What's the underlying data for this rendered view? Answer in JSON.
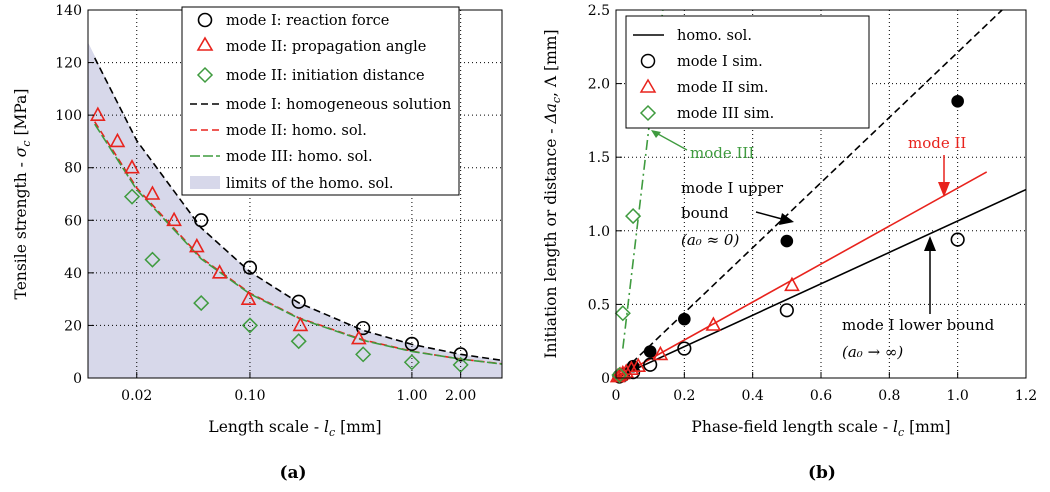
{
  "chart_data": [
    {
      "type": "scatter",
      "panel_label": "(a)",
      "xlabel": "Length scale - l_c [mm]",
      "ylabel": "Tensile strength - σ_c [MPa]",
      "xscale": "log",
      "xlim": [
        0.01,
        3.6
      ],
      "ylim": [
        0,
        140
      ],
      "xticks": [
        0.02,
        0.1,
        1.0,
        2.0
      ],
      "xtick_labels": [
        "0.02",
        "0.10",
        "1.00",
        "2.00"
      ],
      "yticks": [
        0,
        20,
        40,
        60,
        80,
        100,
        120,
        140
      ],
      "ytick_labels": [
        "0",
        "20",
        "40",
        "60",
        "80",
        "100",
        "120",
        "140"
      ],
      "grid": true,
      "legend_position": "top-right",
      "fill_series": {
        "name": "limits of the homo. sol.",
        "color": "#d7d8ea",
        "upper": {
          "x": [
            0.01,
            0.02,
            0.05,
            0.1,
            0.2,
            0.5,
            1.0,
            2.0,
            3.6
          ],
          "y": [
            127.7,
            90.3,
            57.1,
            40.4,
            28.6,
            18.1,
            12.8,
            9.0,
            6.7
          ]
        },
        "lower_y": 0
      },
      "series": [
        {
          "name": "mode I: homogeneous solution",
          "kind": "line",
          "style": "dashed",
          "color": "#000000",
          "x": [
            0.011,
            0.02,
            0.05,
            0.1,
            0.2,
            0.5,
            1.0,
            2.0,
            3.6
          ],
          "y": [
            121.8,
            90.3,
            57.1,
            40.4,
            28.6,
            18.1,
            12.8,
            9.0,
            6.7
          ]
        },
        {
          "name": "mode II: homo. sol.",
          "kind": "line",
          "style": "dashed",
          "color": "#e8231d",
          "x": [
            0.011,
            0.02,
            0.05,
            0.1,
            0.2,
            0.5,
            1.0,
            2.0,
            3.6
          ],
          "y": [
            97.5,
            72.3,
            45.7,
            32.3,
            22.9,
            14.5,
            10.2,
            7.2,
            5.4
          ]
        },
        {
          "name": "mode III:  homo. sol.",
          "kind": "line",
          "style": "dashed",
          "color": "#3f9b3f",
          "x": [
            0.011,
            0.02,
            0.05,
            0.1,
            0.2,
            0.5,
            1.0,
            2.0,
            3.6
          ],
          "y": [
            96.6,
            71.6,
            45.3,
            32.0,
            22.7,
            14.3,
            10.1,
            7.2,
            5.3
          ]
        },
        {
          "name": "mode I: reaction force",
          "kind": "marker",
          "marker": "circle",
          "color": "#000000",
          "x": [
            0.05,
            0.1,
            0.2,
            0.5,
            1.0,
            2.0
          ],
          "y": [
            60,
            42,
            29,
            19,
            13,
            9
          ]
        },
        {
          "name": "mode II: propagation angle",
          "kind": "marker",
          "marker": "triangle",
          "color": "#e8231d",
          "x": [
            0.0115,
            0.0152,
            0.0187,
            0.025,
            0.034,
            0.047,
            0.065,
            0.098,
            0.205,
            0.47
          ],
          "y": [
            100,
            90,
            80,
            70,
            60,
            50,
            40,
            30,
            20,
            15
          ]
        },
        {
          "name": "mode II: initiation distance",
          "kind": "marker",
          "marker": "diamond",
          "color": "#3f9b3f",
          "x": [
            0.0187,
            0.025,
            0.05,
            0.1,
            0.2,
            0.5,
            1.0,
            2.0
          ],
          "y": [
            69,
            45,
            28.5,
            20,
            14,
            9,
            6,
            5
          ]
        }
      ]
    },
    {
      "type": "scatter",
      "panel_label": "(b)",
      "xlabel": "Phase-field length scale - l_c [mm]",
      "ylabel": "Initiation length or distance - Δa_c,  Λ [mm]",
      "xlim": [
        0,
        1.2
      ],
      "ylim": [
        0,
        2.5
      ],
      "xticks": [
        0,
        0.2,
        0.4,
        0.6,
        0.8,
        1.0,
        1.2
      ],
      "xtick_labels": [
        "0",
        "0.2",
        "0.4",
        "0.6",
        "0.8",
        "1.0",
        "1.2"
      ],
      "yticks": [
        0,
        0.5,
        1.0,
        1.5,
        2.0,
        2.5
      ],
      "ytick_labels": [
        "0",
        "0.5",
        "1.0",
        "1.5",
        "2.0",
        "2.5"
      ],
      "grid": true,
      "legend_position": "top-left",
      "series": [
        {
          "name": "homo. sol.",
          "kind": "line",
          "style": "solid",
          "color": "#000000",
          "x": [
            0,
            1.2
          ],
          "y": [
            0,
            1.28
          ]
        },
        {
          "name": "mode I upper bound",
          "kind": "line",
          "style": "dashed",
          "color": "#000000",
          "x": [
            0,
            1.13
          ],
          "y": [
            0,
            2.5
          ]
        },
        {
          "name": "mode II line",
          "kind": "line",
          "style": "solid",
          "color": "#e8231d",
          "x": [
            0,
            1.085
          ],
          "y": [
            0,
            1.4
          ]
        },
        {
          "name": "mode III line",
          "kind": "line",
          "style": "dashdot",
          "color": "#3f9b3f",
          "x": [
            0.02,
            0.137
          ],
          "y": [
            0.2,
            2.5
          ]
        },
        {
          "name": "mode I filled",
          "kind": "marker",
          "marker": "filled-circle",
          "color": "#000000",
          "x": [
            0.05,
            0.1,
            0.2,
            0.5,
            1.0
          ],
          "y": [
            0.08,
            0.18,
            0.4,
            0.93,
            1.88
          ]
        },
        {
          "name": "mode I sim.",
          "kind": "marker",
          "marker": "circle",
          "color": "#000000",
          "x": [
            0.01,
            0.02,
            0.05,
            0.1,
            0.2,
            0.5,
            1.0
          ],
          "y": [
            0.01,
            0.02,
            0.04,
            0.09,
            0.2,
            0.46,
            0.94
          ]
        },
        {
          "name": "mode II sim.",
          "kind": "marker",
          "marker": "triangle",
          "color": "#e8231d",
          "x": [
            0.005,
            0.012,
            0.02,
            0.03,
            0.045,
            0.065,
            0.13,
            0.285,
            0.515
          ],
          "y": [
            0.01,
            0.02,
            0.03,
            0.04,
            0.06,
            0.08,
            0.16,
            0.36,
            0.63
          ]
        },
        {
          "name": "mode III sim.",
          "kind": "marker",
          "marker": "diamond",
          "color": "#3f9b3f",
          "x": [
            0.01,
            0.02,
            0.05,
            0.1
          ],
          "y": [
            0.02,
            0.44,
            1.1,
            2.2
          ]
        }
      ],
      "annotations": {
        "mode_iii": "mode III",
        "mode_ii": "mode II",
        "upper_1": "mode I upper",
        "upper_2": "bound",
        "upper_3": "(a₀ ≈ 0)",
        "lower_1": "mode I lower bound",
        "lower_2": "(a₀ → ∞)"
      }
    }
  ],
  "legend_a": [
    "mode I: reaction force",
    "mode II: propagation angle",
    "mode II: initiation distance",
    "mode I: homogeneous solution",
    "mode II: homo. sol.",
    "mode III:  homo. sol.",
    "limits of the homo. sol."
  ],
  "legend_b": [
    "homo. sol.",
    "mode I sim.",
    "mode II sim.",
    "mode III sim."
  ],
  "colors": {
    "black": "#000000",
    "red": "#e8231d",
    "green": "#3f9b3f",
    "fill": "#d7d8ea"
  }
}
